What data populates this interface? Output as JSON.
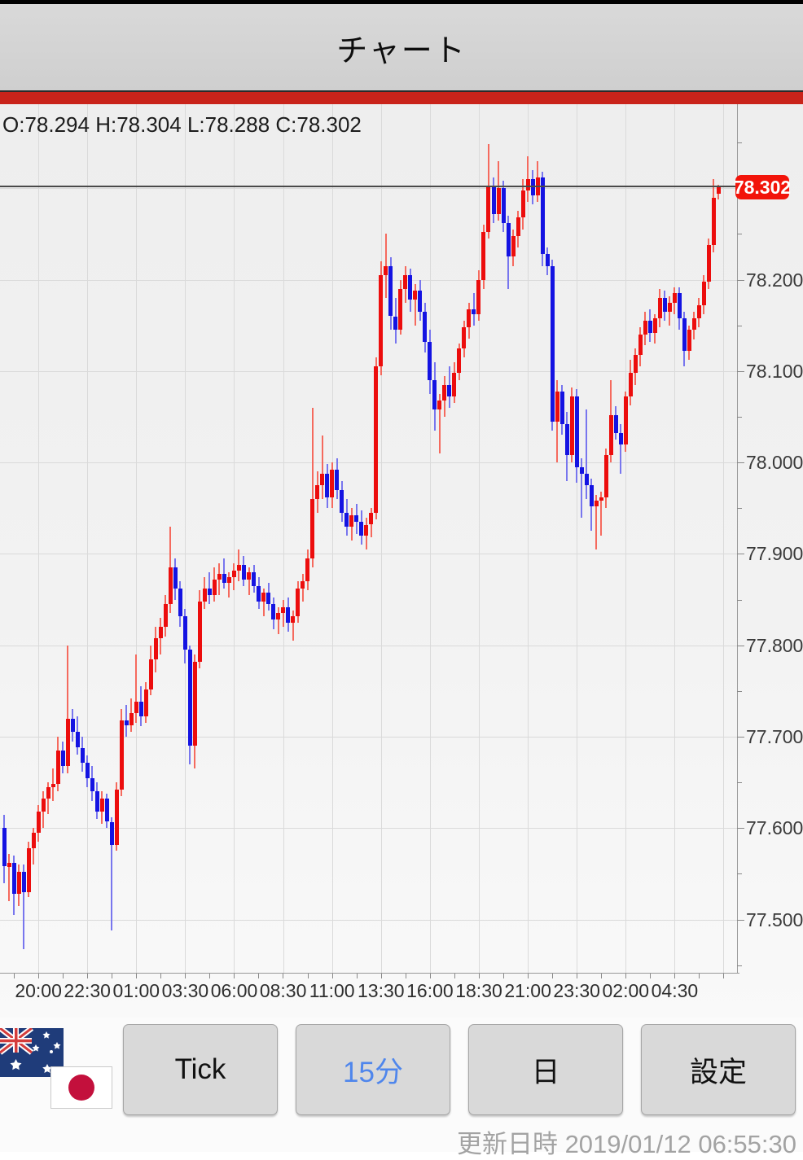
{
  "header": {
    "title": "チャート"
  },
  "ohlc_readout": {
    "text": "O:78.294 H:78.304 L:78.288 C:78.302"
  },
  "chart_data": {
    "type": "candlestick",
    "title": "チャート",
    "instrument_flags": [
      "australia-flag",
      "japan-flag"
    ],
    "interval": "15分",
    "current_price": 78.302,
    "current_price_label": "78.302",
    "legend_position": "none",
    "grid": true,
    "ylim": [
      77.45,
      78.39
    ],
    "y_axis": {
      "labels": [
        "78.200",
        "78.100",
        "78.000",
        "77.900",
        "77.800",
        "77.700",
        "77.600",
        "77.500"
      ],
      "values": [
        78.2,
        78.1,
        78.0,
        77.9,
        77.8,
        77.7,
        77.6,
        77.5
      ],
      "minor_step": 0.05
    },
    "x_labels": [
      "20:00",
      "22:30",
      "01:00",
      "03:30",
      "06:00",
      "08:30",
      "11:00",
      "13:30",
      "16:00",
      "18:30",
      "21:00",
      "23:30",
      "02:00",
      "04:30"
    ],
    "x_label_first_candle": 7,
    "x_label_candle_step": 10,
    "candles_ohlc": [
      [
        77.6,
        77.615,
        77.54,
        77.558
      ],
      [
        77.558,
        77.572,
        77.52,
        77.562
      ],
      [
        77.562,
        77.57,
        77.505,
        77.528
      ],
      [
        77.528,
        77.56,
        77.515,
        77.552
      ],
      [
        77.552,
        77.56,
        77.468,
        77.53
      ],
      [
        77.53,
        77.585,
        77.525,
        77.578
      ],
      [
        77.578,
        77.6,
        77.56,
        77.595
      ],
      [
        77.595,
        77.625,
        77.585,
        77.618
      ],
      [
        77.618,
        77.64,
        77.6,
        77.632
      ],
      [
        77.632,
        77.65,
        77.615,
        77.645
      ],
      [
        77.645,
        77.665,
        77.63,
        77.648
      ],
      [
        77.648,
        77.7,
        77.64,
        77.685
      ],
      [
        77.685,
        77.695,
        77.66,
        77.668
      ],
      [
        77.668,
        77.8,
        77.66,
        77.72
      ],
      [
        77.72,
        77.73,
        77.695,
        77.705
      ],
      [
        77.705,
        77.722,
        77.68,
        77.688
      ],
      [
        77.688,
        77.7,
        77.662,
        77.672
      ],
      [
        77.672,
        77.68,
        77.645,
        77.655
      ],
      [
        77.655,
        77.668,
        77.63,
        77.64
      ],
      [
        77.64,
        77.65,
        77.61,
        77.618
      ],
      [
        77.618,
        77.64,
        77.605,
        77.632
      ],
      [
        77.632,
        77.638,
        77.6,
        77.607
      ],
      [
        77.607,
        77.612,
        77.488,
        77.582
      ],
      [
        77.582,
        77.65,
        77.575,
        77.642
      ],
      [
        77.642,
        77.73,
        77.635,
        77.718
      ],
      [
        77.718,
        77.735,
        77.7,
        77.712
      ],
      [
        77.712,
        77.742,
        77.705,
        77.726
      ],
      [
        77.726,
        77.79,
        77.715,
        77.738
      ],
      [
        77.738,
        77.755,
        77.712,
        77.722
      ],
      [
        77.722,
        77.76,
        77.715,
        77.752
      ],
      [
        77.752,
        77.8,
        77.745,
        77.785
      ],
      [
        77.785,
        77.82,
        77.77,
        77.808
      ],
      [
        77.808,
        77.83,
        77.79,
        77.82
      ],
      [
        77.82,
        77.855,
        77.81,
        77.845
      ],
      [
        77.845,
        77.93,
        77.835,
        77.885
      ],
      [
        77.885,
        77.895,
        77.85,
        77.862
      ],
      [
        77.862,
        77.87,
        77.82,
        77.832
      ],
      [
        77.832,
        77.84,
        77.78,
        77.795
      ],
      [
        77.795,
        77.8,
        77.67,
        77.69
      ],
      [
        77.69,
        77.79,
        77.665,
        77.782
      ],
      [
        77.782,
        77.86,
        77.775,
        77.848
      ],
      [
        77.848,
        77.875,
        77.84,
        77.862
      ],
      [
        77.862,
        77.88,
        77.845,
        77.855
      ],
      [
        77.855,
        77.885,
        77.848,
        77.872
      ],
      [
        77.872,
        77.89,
        77.855,
        77.878
      ],
      [
        77.878,
        77.895,
        77.862,
        77.868
      ],
      [
        77.868,
        77.88,
        77.852,
        77.875
      ],
      [
        77.875,
        77.89,
        77.86,
        77.882
      ],
      [
        77.882,
        77.905,
        77.87,
        77.888
      ],
      [
        77.888,
        77.898,
        77.865,
        77.872
      ],
      [
        77.872,
        77.885,
        77.855,
        77.88
      ],
      [
        77.88,
        77.888,
        77.858,
        77.865
      ],
      [
        77.865,
        77.875,
        77.84,
        77.848
      ],
      [
        77.848,
        77.862,
        77.832,
        77.858
      ],
      [
        77.858,
        77.868,
        77.838,
        77.845
      ],
      [
        77.845,
        77.852,
        77.818,
        77.828
      ],
      [
        77.828,
        77.842,
        77.812,
        77.835
      ],
      [
        77.835,
        77.85,
        77.82,
        77.842
      ],
      [
        77.842,
        77.852,
        77.815,
        77.825
      ],
      [
        77.825,
        77.838,
        77.805,
        77.832
      ],
      [
        77.832,
        77.87,
        77.825,
        77.862
      ],
      [
        77.862,
        77.878,
        77.848,
        77.87
      ],
      [
        77.87,
        77.905,
        77.86,
        77.895
      ],
      [
        77.895,
        78.06,
        77.885,
        77.96
      ],
      [
        77.96,
        77.99,
        77.945,
        77.975
      ],
      [
        77.975,
        78.03,
        77.96,
        77.988
      ],
      [
        77.988,
        77.998,
        77.95,
        77.962
      ],
      [
        77.962,
        78.0,
        77.95,
        77.992
      ],
      [
        77.992,
        78.005,
        77.96,
        77.97
      ],
      [
        77.97,
        77.98,
        77.935,
        77.945
      ],
      [
        77.945,
        77.96,
        77.92,
        77.93
      ],
      [
        77.93,
        77.95,
        77.915,
        77.942
      ],
      [
        77.942,
        77.955,
        77.922,
        77.935
      ],
      [
        77.935,
        77.948,
        77.91,
        77.92
      ],
      [
        77.92,
        77.94,
        77.905,
        77.932
      ],
      [
        77.932,
        77.95,
        77.918,
        77.945
      ],
      [
        77.945,
        78.115,
        77.938,
        78.105
      ],
      [
        78.105,
        78.22,
        78.095,
        78.205
      ],
      [
        78.205,
        78.25,
        78.18,
        78.215
      ],
      [
        78.215,
        78.225,
        78.145,
        78.16
      ],
      [
        78.16,
        78.18,
        78.13,
        78.145
      ],
      [
        78.145,
        78.2,
        78.14,
        78.19
      ],
      [
        78.19,
        78.215,
        78.175,
        78.205
      ],
      [
        78.205,
        78.212,
        78.165,
        78.178
      ],
      [
        78.178,
        78.195,
        78.15,
        78.188
      ],
      [
        78.188,
        78.2,
        78.155,
        78.165
      ],
      [
        78.165,
        78.175,
        78.12,
        78.132
      ],
      [
        78.132,
        78.145,
        78.075,
        78.09
      ],
      [
        78.09,
        78.11,
        78.035,
        78.058
      ],
      [
        78.058,
        78.075,
        78.01,
        78.068
      ],
      [
        78.068,
        78.095,
        78.05,
        78.085
      ],
      [
        78.085,
        78.105,
        78.06,
        78.072
      ],
      [
        78.072,
        78.11,
        78.065,
        78.098
      ],
      [
        78.098,
        78.13,
        78.09,
        78.125
      ],
      [
        78.125,
        78.155,
        78.115,
        78.148
      ],
      [
        78.148,
        78.175,
        78.135,
        78.168
      ],
      [
        78.168,
        78.185,
        78.15,
        78.162
      ],
      [
        78.162,
        78.21,
        78.155,
        78.2
      ],
      [
        78.2,
        78.26,
        78.19,
        78.252
      ],
      [
        78.252,
        78.348,
        78.245,
        78.302
      ],
      [
        78.302,
        78.312,
        78.262,
        78.272
      ],
      [
        78.272,
        78.33,
        78.265,
        78.3
      ],
      [
        78.3,
        78.308,
        78.252,
        78.262
      ],
      [
        78.262,
        78.27,
        78.19,
        78.225
      ],
      [
        78.225,
        78.255,
        78.215,
        78.248
      ],
      [
        78.248,
        78.275,
        78.235,
        78.268
      ],
      [
        78.268,
        78.31,
        78.255,
        78.298
      ],
      [
        78.298,
        78.335,
        78.285,
        78.31
      ],
      [
        78.31,
        78.32,
        78.282,
        78.292
      ],
      [
        78.292,
        78.33,
        78.285,
        78.312
      ],
      [
        78.312,
        78.318,
        78.215,
        78.228
      ],
      [
        78.228,
        78.235,
        78.205,
        78.215
      ],
      [
        78.215,
        78.222,
        78.035,
        78.045
      ],
      [
        78.045,
        78.09,
        78.0,
        78.078
      ],
      [
        78.078,
        78.085,
        78.03,
        78.042
      ],
      [
        78.042,
        78.055,
        77.98,
        78.008
      ],
      [
        78.008,
        78.082,
        78.0,
        78.072
      ],
      [
        78.072,
        78.08,
        77.978,
        77.995
      ],
      [
        77.995,
        78.005,
        77.94,
        77.988
      ],
      [
        77.988,
        78.058,
        77.96,
        77.975
      ],
      [
        77.975,
        77.982,
        77.925,
        77.952
      ],
      [
        77.952,
        77.965,
        77.905,
        77.958
      ],
      [
        77.958,
        77.968,
        77.92,
        77.962
      ],
      [
        77.962,
        78.015,
        77.95,
        78.008
      ],
      [
        78.008,
        78.09,
        78.0,
        78.052
      ],
      [
        78.052,
        78.062,
        78.025,
        78.032
      ],
      [
        78.032,
        78.042,
        77.988,
        78.02
      ],
      [
        78.02,
        78.078,
        78.012,
        78.072
      ],
      [
        78.072,
        78.112,
        78.062,
        78.098
      ],
      [
        78.098,
        78.125,
        78.085,
        78.118
      ],
      [
        78.118,
        78.148,
        78.105,
        78.14
      ],
      [
        78.14,
        78.165,
        78.128,
        78.155
      ],
      [
        78.155,
        78.168,
        78.132,
        78.142
      ],
      [
        78.142,
        78.162,
        78.13,
        78.158
      ],
      [
        78.158,
        78.19,
        78.148,
        78.18
      ],
      [
        78.18,
        78.188,
        78.155,
        78.165
      ],
      [
        78.165,
        78.182,
        78.15,
        78.175
      ],
      [
        78.175,
        78.192,
        78.162,
        78.185
      ],
      [
        78.185,
        78.192,
        78.145,
        78.158
      ],
      [
        78.158,
        78.165,
        78.105,
        78.122
      ],
      [
        78.122,
        78.15,
        78.112,
        78.145
      ],
      [
        78.145,
        78.165,
        78.135,
        78.158
      ],
      [
        78.158,
        78.18,
        78.148,
        78.172
      ],
      [
        78.172,
        78.205,
        78.162,
        78.198
      ],
      [
        78.198,
        78.245,
        78.19,
        78.238
      ],
      [
        78.238,
        78.31,
        78.23,
        78.29
      ],
      [
        78.294,
        78.304,
        78.288,
        78.302
      ]
    ]
  },
  "colors": {
    "candle_up": "#ec0d0d",
    "candle_down": "#1413e2",
    "accent_red_bar": "#c9231a",
    "price_badge": "#f2140a",
    "active_button_text": "#4f86ec"
  },
  "footer": {
    "buttons": [
      {
        "label": "Tick",
        "active": false
      },
      {
        "label": "15分",
        "active": true
      },
      {
        "label": "日",
        "active": false
      },
      {
        "label": "設定",
        "active": false
      }
    ],
    "updated_text": "更新日時  2019/01/12 06:55:30"
  }
}
